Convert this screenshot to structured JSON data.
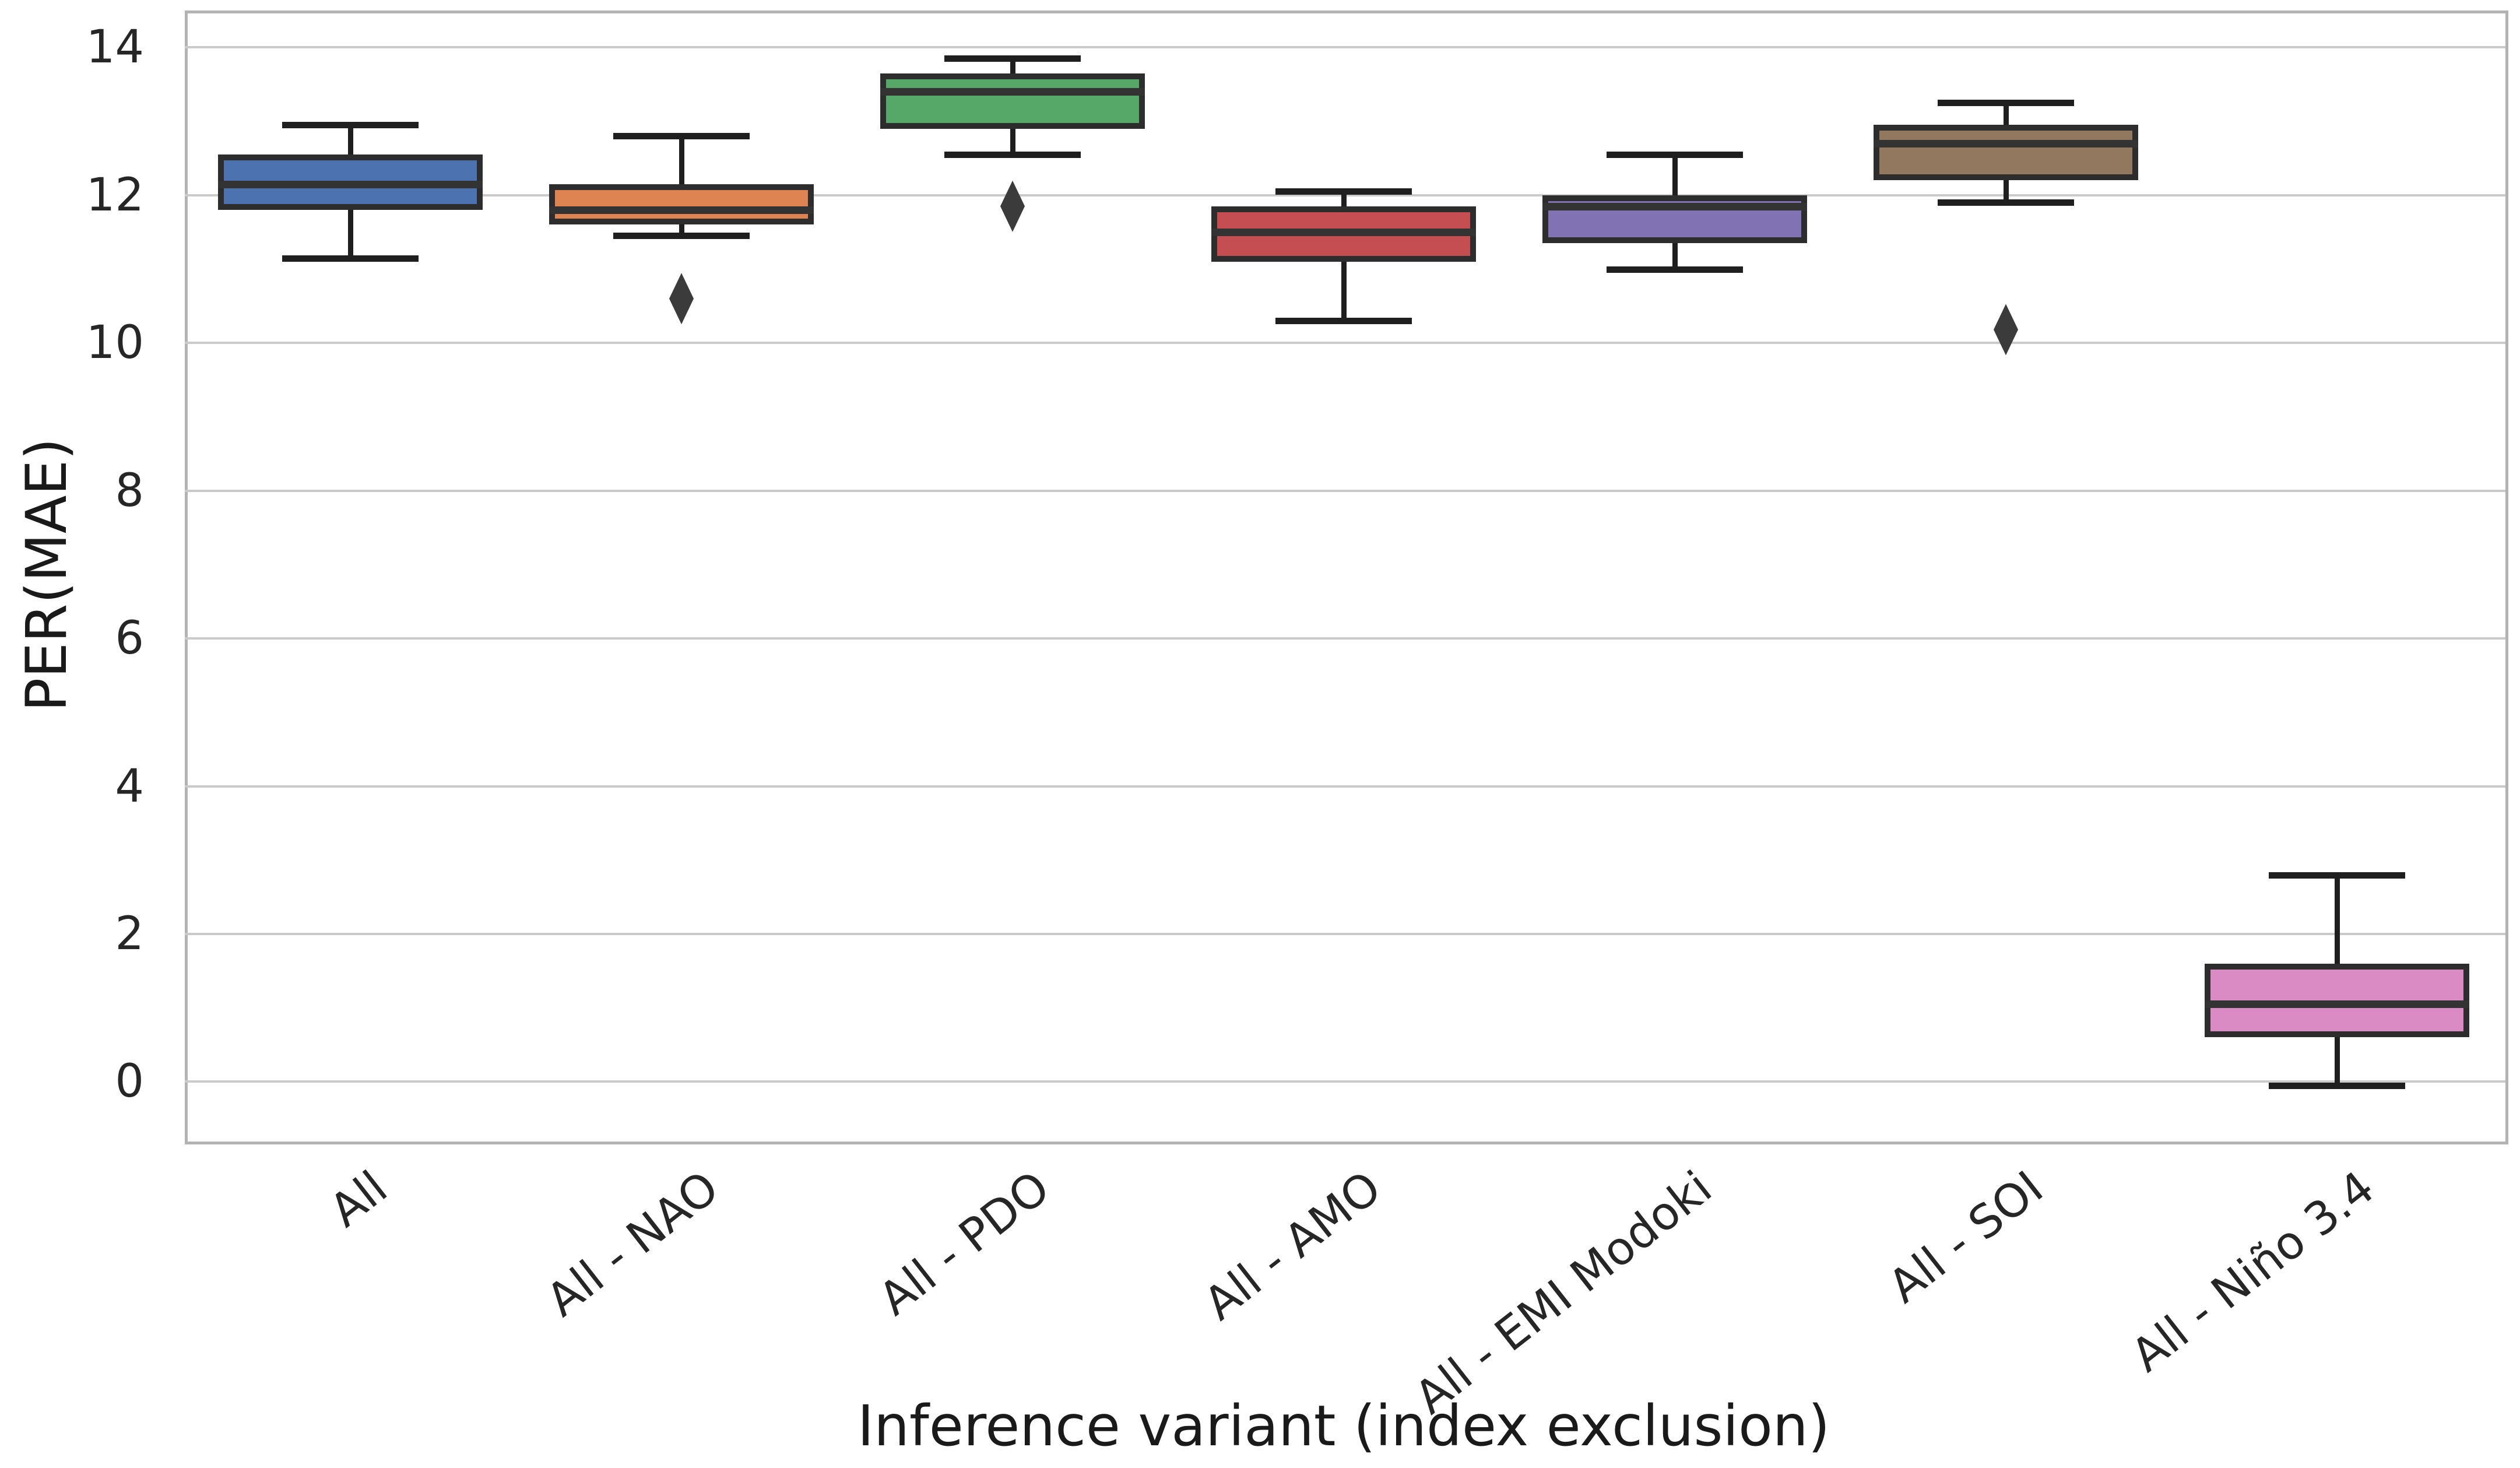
{
  "chart_data": {
    "type": "box",
    "title": "",
    "xlabel": "Inference variant (index exclusion)",
    "ylabel": "PER(MAE)",
    "ylim": [
      -0.77,
      14.5
    ],
    "yticks": [
      0,
      2,
      4,
      6,
      8,
      10,
      12,
      14
    ],
    "grid": "horizontal",
    "legend": "none",
    "categories": [
      "All",
      "All - NAO",
      "All - PDO",
      "All - AMO",
      "All - EMI Modoki",
      "All - SOI",
      "All - Niño 3.4"
    ],
    "series": [
      {
        "label": "All",
        "color": "#4C72B0",
        "whisker_low": 11.15,
        "q1": 11.8,
        "median": 12.15,
        "q3": 12.55,
        "whisker_high": 12.95,
        "outliers": []
      },
      {
        "label": "All - NAO",
        "color": "#DD8452",
        "whisker_low": 11.45,
        "q1": 11.6,
        "median": 11.8,
        "q3": 12.15,
        "whisker_high": 12.8,
        "outliers": [
          10.6
        ]
      },
      {
        "label": "All - PDO",
        "color": "#55A868",
        "whisker_low": 12.55,
        "q1": 12.9,
        "median": 13.4,
        "q3": 13.65,
        "whisker_high": 13.85,
        "outliers": [
          11.85
        ]
      },
      {
        "label": "All - AMO",
        "color": "#C44E52",
        "whisker_low": 10.3,
        "q1": 11.1,
        "median": 11.5,
        "q3": 11.85,
        "whisker_high": 12.05,
        "outliers": []
      },
      {
        "label": "All - EMI Modoki",
        "color": "#8172B3",
        "whisker_low": 11.0,
        "q1": 11.35,
        "median": 11.85,
        "q3": 12.0,
        "whisker_high": 12.55,
        "outliers": []
      },
      {
        "label": "All - SOI",
        "color": "#937860",
        "whisker_low": 11.9,
        "q1": 12.2,
        "median": 12.7,
        "q3": 12.95,
        "whisker_high": 13.25,
        "outliers": [
          10.18
        ]
      },
      {
        "label": "All - Niño 3.4",
        "color": "#DA8BC3",
        "whisker_low": -0.05,
        "q1": 0.6,
        "median": 1.05,
        "q3": 1.6,
        "whisker_high": 2.8,
        "outliers": []
      }
    ],
    "style": {
      "grid_color": "#cacaca",
      "spine_color": "#b3b3b3",
      "tick_text_color": "#262626",
      "title_text_color": "#1a1a1a",
      "box_edge_color": "#2d2d2d",
      "whisker_color": "#1f1f1f",
      "median_color": "#333333",
      "outlier_color": "#3b3b3b"
    }
  }
}
